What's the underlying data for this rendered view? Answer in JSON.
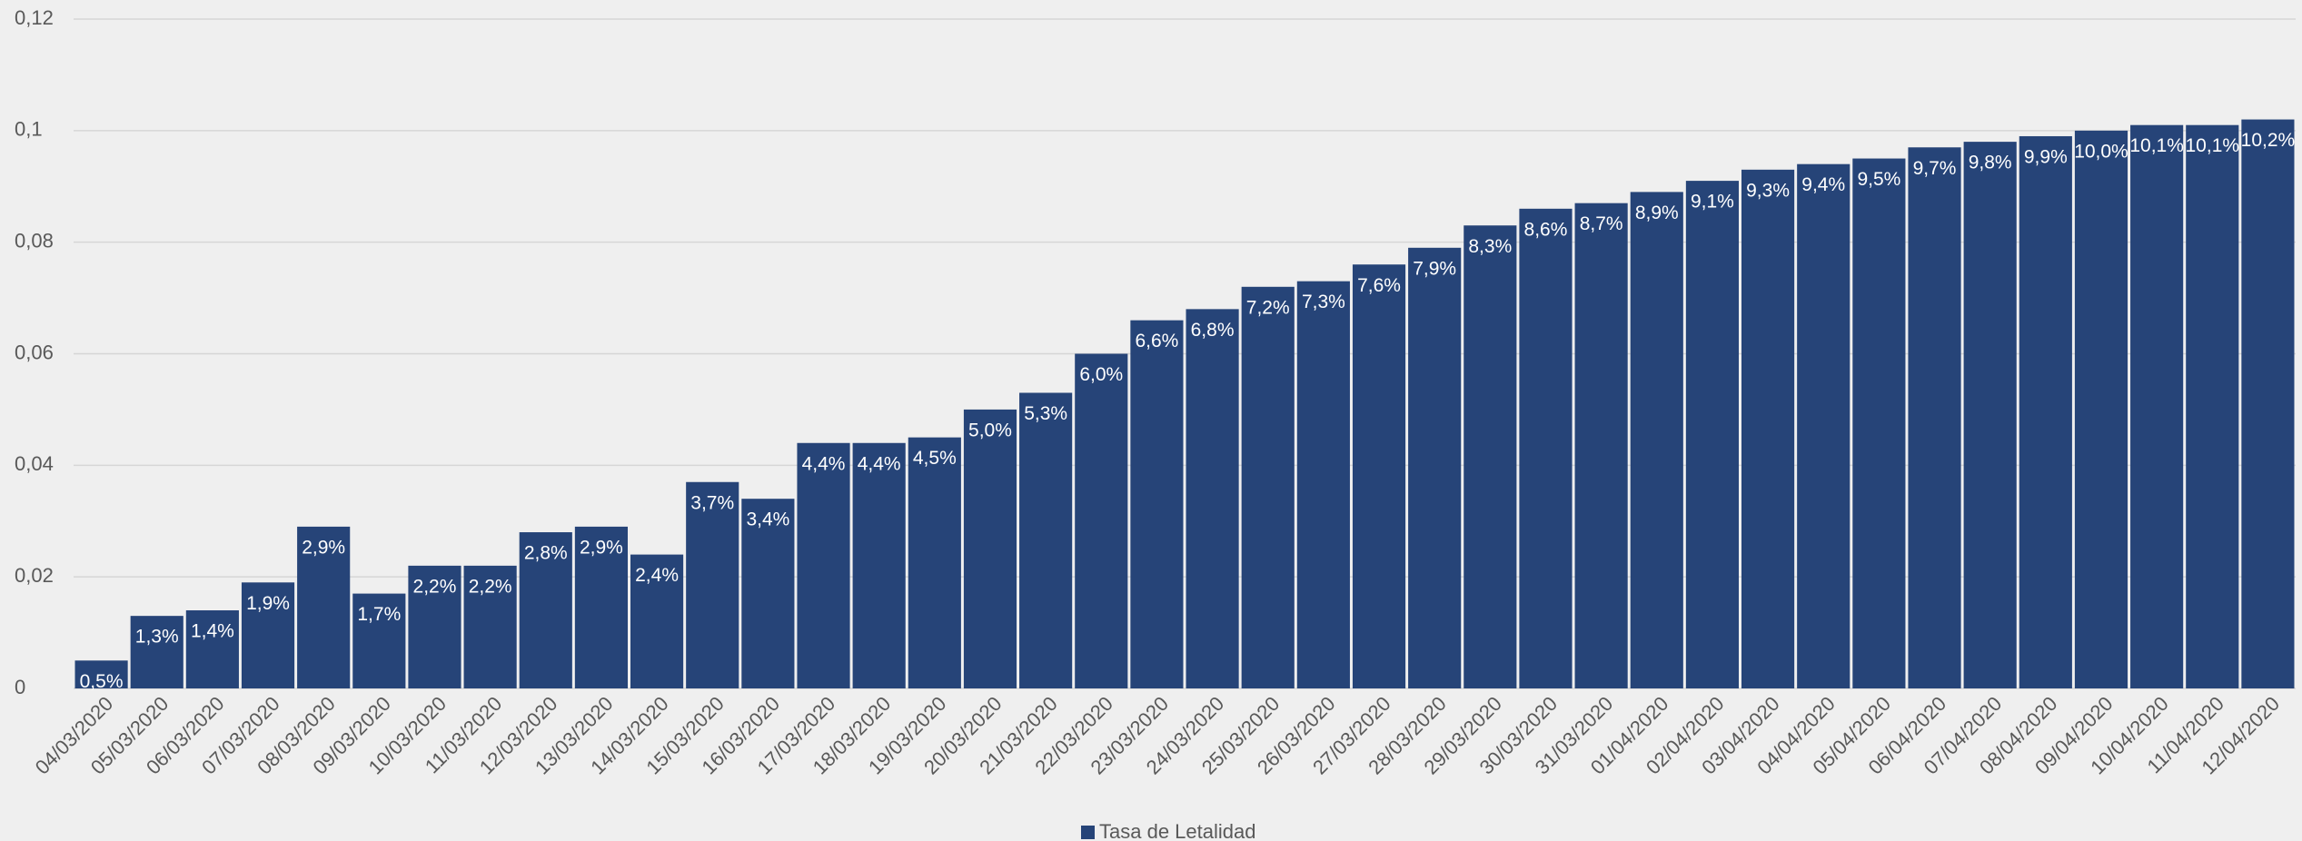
{
  "chart_data": {
    "type": "bar",
    "categories": [
      "04/03/2020",
      "05/03/2020",
      "06/03/2020",
      "07/03/2020",
      "08/03/2020",
      "09/03/2020",
      "10/03/2020",
      "11/03/2020",
      "12/03/2020",
      "13/03/2020",
      "14/03/2020",
      "15/03/2020",
      "16/03/2020",
      "17/03/2020",
      "18/03/2020",
      "19/03/2020",
      "20/03/2020",
      "21/03/2020",
      "22/03/2020",
      "23/03/2020",
      "24/03/2020",
      "25/03/2020",
      "26/03/2020",
      "27/03/2020",
      "28/03/2020",
      "29/03/2020",
      "30/03/2020",
      "31/03/2020",
      "01/04/2020",
      "02/04/2020",
      "03/04/2020",
      "04/04/2020",
      "05/04/2020",
      "06/04/2020",
      "07/04/2020",
      "08/04/2020",
      "09/04/2020",
      "10/04/2020",
      "11/04/2020",
      "12/04/2020"
    ],
    "series": [
      {
        "name": "Tasa de Letalidad",
        "color": "#264478",
        "values": [
          0.005,
          0.013,
          0.014,
          0.019,
          0.029,
          0.017,
          0.022,
          0.022,
          0.028,
          0.029,
          0.024,
          0.037,
          0.034,
          0.044,
          0.044,
          0.045,
          0.05,
          0.053,
          0.06,
          0.066,
          0.068,
          0.072,
          0.073,
          0.076,
          0.079,
          0.083,
          0.086,
          0.087,
          0.089,
          0.091,
          0.093,
          0.094,
          0.095,
          0.097,
          0.098,
          0.099,
          0.1,
          0.101,
          0.101,
          0.102
        ],
        "value_labels": [
          "0,5%",
          "1,3%",
          "1,4%",
          "1,9%",
          "2,9%",
          "1,7%",
          "2,2%",
          "2,2%",
          "2,8%",
          "2,9%",
          "2,4%",
          "3,7%",
          "3,4%",
          "4,4%",
          "4,4%",
          "4,5%",
          "5,0%",
          "5,3%",
          "6,0%",
          "6,6%",
          "6,8%",
          "7,2%",
          "7,3%",
          "7,6%",
          "7,9%",
          "8,3%",
          "8,6%",
          "8,7%",
          "8,9%",
          "9,1%",
          "9,3%",
          "9,4%",
          "9,5%",
          "9,7%",
          "9,8%",
          "9,9%",
          "10,0%",
          "10,1%",
          "10,1%",
          "10,2%"
        ]
      }
    ],
    "ylim": [
      0,
      0.12
    ],
    "yticks": [
      0,
      {
        "value": 0.02,
        "label": "0,02"
      },
      {
        "value": 0.04,
        "label": "0,04"
      },
      {
        "value": 0.06,
        "label": "0,06"
      },
      {
        "value": 0.08,
        "label": "0,08"
      },
      {
        "value": 0.1,
        "label": "0,1"
      },
      {
        "value": 0.12,
        "label": "0,12"
      }
    ],
    "grid": true,
    "legend": "bottom"
  }
}
